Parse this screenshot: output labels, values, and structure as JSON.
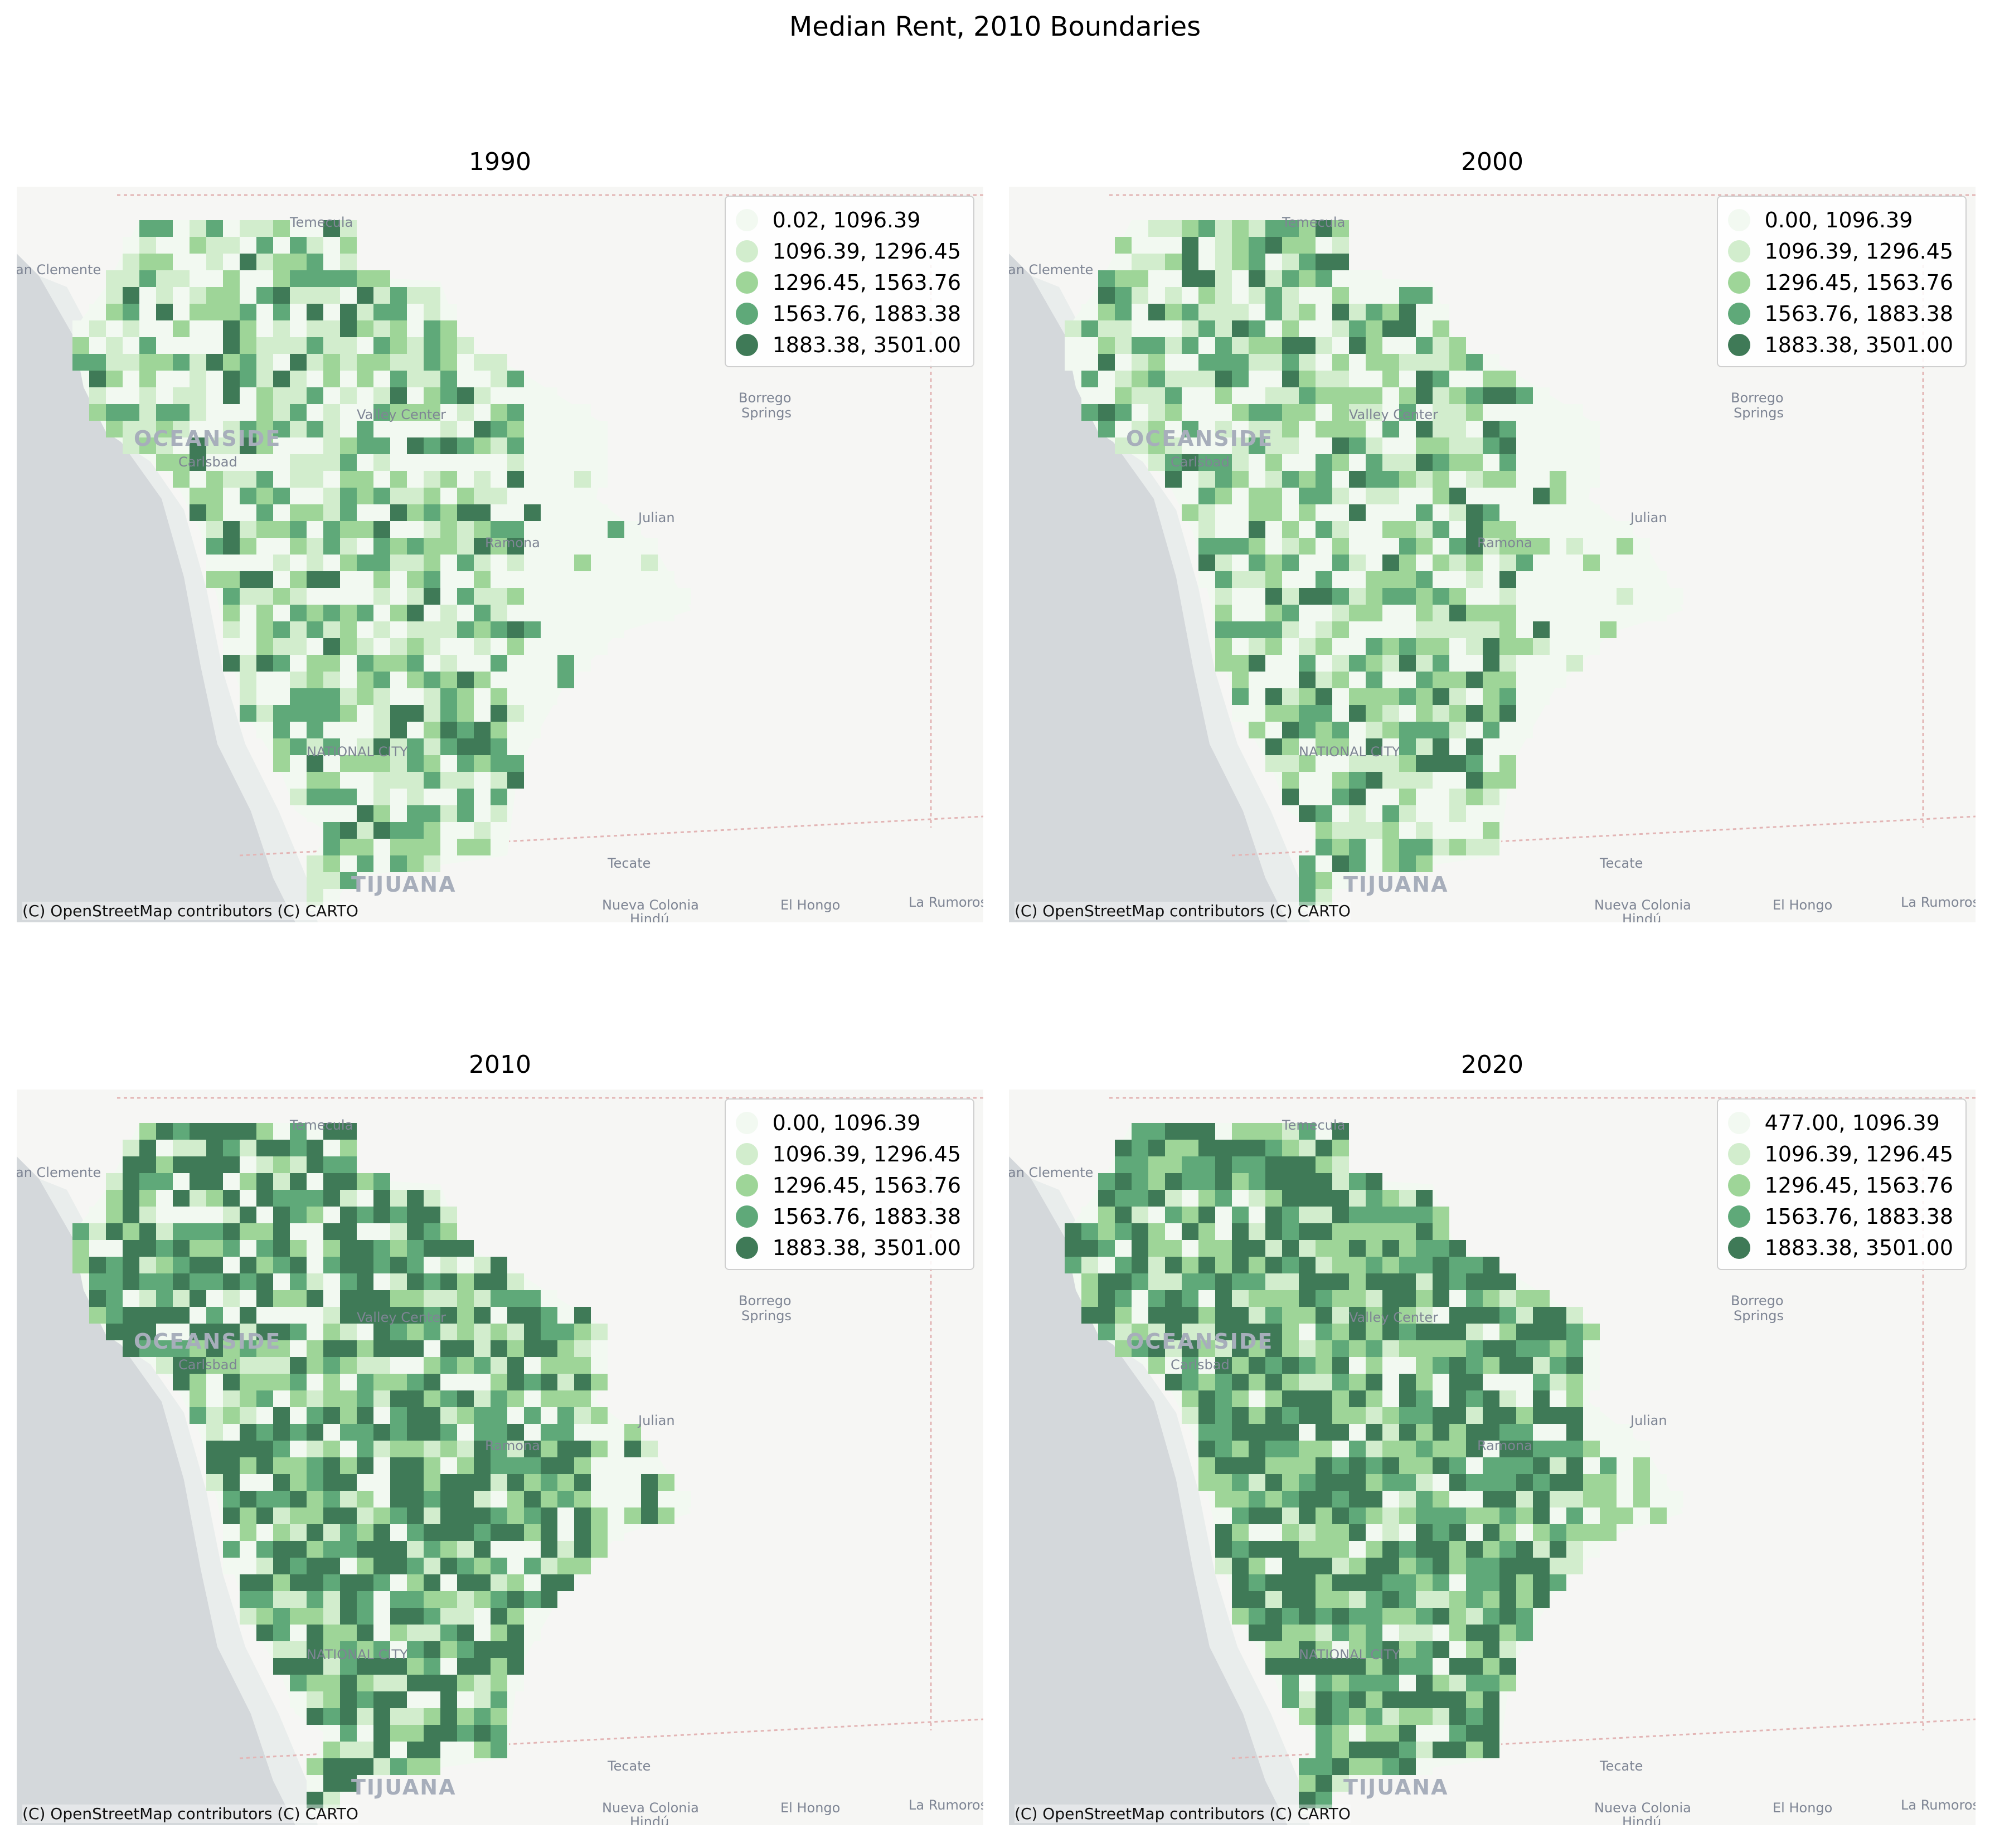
{
  "title": "Median Rent, 2010 Boundaries",
  "attribution": "(C) OpenStreetMap contributors (C) CARTO",
  "legend_colors": [
    "#f2f9f1",
    "#d2edcd",
    "#9ed598",
    "#5fa979",
    "#3f7a57"
  ],
  "basemap": {
    "land": "#f6f6f4",
    "ocean": "#d4d8db",
    "coastal_shelf": "#e9edec",
    "border": "#e3b5b5"
  },
  "place_labels": {
    "temecula": "Temecula",
    "san_clemente": "an Clemente",
    "oceanside": "OCEANSIDE",
    "carlsbad": "Carlsbad",
    "valley_center": "Valley Center",
    "borrego": "Borrego",
    "springs": "Springs",
    "julian": "Julian",
    "ramona": "Ramona",
    "national_city": "NATIONAL CITY",
    "tecate": "Tecate",
    "tijuana": "TIJUANA",
    "nueva_colonia": "Nueva Colonia",
    "hindu": "Hindú",
    "el_hongo": "El Hongo",
    "la_rumorosa": "La Rumorosa"
  },
  "panels": [
    {
      "year": "1990",
      "legend": [
        "0.02, 1096.39",
        "1096.39, 1296.45",
        "1296.45, 1563.76",
        "1563.76, 1883.38",
        "1883.38, 3501.00"
      ]
    },
    {
      "year": "2000",
      "legend": [
        "0.00, 1096.39",
        "1096.39, 1296.45",
        "1296.45, 1563.76",
        "1563.76, 1883.38",
        "1883.38, 3501.00"
      ]
    },
    {
      "year": "2010",
      "legend": [
        "0.00, 1096.39",
        "1096.39, 1296.45",
        "1296.45, 1563.76",
        "1563.76, 1883.38",
        "1883.38, 3501.00"
      ]
    },
    {
      "year": "2020",
      "legend": [
        "477.00, 1096.39",
        "1096.39, 1296.45",
        "1296.45, 1563.76",
        "1563.76, 1883.38",
        "1883.38, 3501.00"
      ]
    }
  ]
}
